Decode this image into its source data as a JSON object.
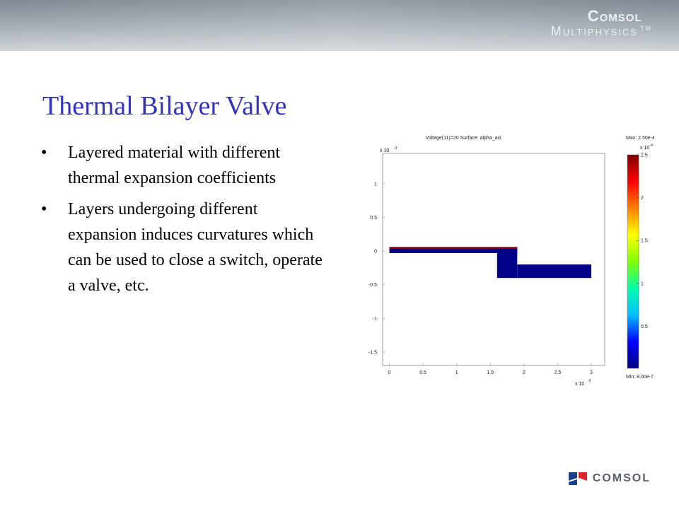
{
  "header": {
    "brand_name": "Comsol",
    "brand_sub": "Multiphysics",
    "brand_tm": "TM"
  },
  "slide": {
    "title": "Thermal Bilayer Valve",
    "bullets": [
      "Layered material with different thermal expansion coefficients",
      "Layers undergoing different expansion induces curvatures which can be used to close a switch, operate a valve, etc."
    ]
  },
  "footer": {
    "logo_text": "COMSOL"
  },
  "chart_data": {
    "type": "heatmap",
    "title": "Voltage(11)=20    Surface: alpha_axi",
    "xlabel": "",
    "ylabel": "",
    "x_multiplier": "x 10",
    "x_multiplier_exp": "-3",
    "y_multiplier": "x 10",
    "y_multiplier_exp": "-3",
    "xlim": [
      -0.1,
      3.2
    ],
    "ylim": [
      -1.7,
      1.45
    ],
    "x_ticks": [
      0,
      0.5,
      1,
      1.5,
      2,
      2.5,
      3
    ],
    "x_tick_labels": [
      "0",
      "0.5",
      "1",
      "1.5",
      "2",
      "2.5",
      "3"
    ],
    "y_ticks": [
      1,
      0.5,
      0,
      -0.5,
      -1,
      -1.5
    ],
    "y_tick_labels": [
      "1",
      "0.5",
      "0",
      "-0.5",
      "-1",
      "-1.5"
    ],
    "regions": [
      {
        "x": [
          0,
          0.25
        ],
        "y": [
          -0.03,
          0.03
        ],
        "color": "#0000cc"
      },
      {
        "x": [
          0,
          1.9
        ],
        "y": [
          -0.03,
          0.06
        ],
        "color": "#000088"
      },
      {
        "x": [
          0,
          1.9
        ],
        "y": [
          0.03,
          0.06
        ],
        "color": "#8b0000"
      },
      {
        "x": [
          1.6,
          1.9
        ],
        "y": [
          -0.4,
          0.03
        ],
        "color": "#000088"
      },
      {
        "x": [
          1.9,
          3.0
        ],
        "y": [
          -0.4,
          -0.2
        ],
        "color": "#000088"
      }
    ],
    "colorbar": {
      "max_label": "Max: 2.50e-4",
      "min_label": "Min: 8.00e-7",
      "multiplier": "x 10",
      "multiplier_exp": "-4",
      "range": [
        0.008,
        2.5
      ],
      "ticks": [
        2.5,
        2,
        1.5,
        1,
        0.5
      ],
      "tick_labels": [
        "2.5",
        "2",
        "1.5",
        "1",
        "0.5"
      ],
      "colors": [
        "#00007f",
        "#0000ff",
        "#00bfff",
        "#00ffaa",
        "#7fff00",
        "#ffff00",
        "#ff7f00",
        "#ff0000",
        "#7f0000"
      ]
    }
  }
}
